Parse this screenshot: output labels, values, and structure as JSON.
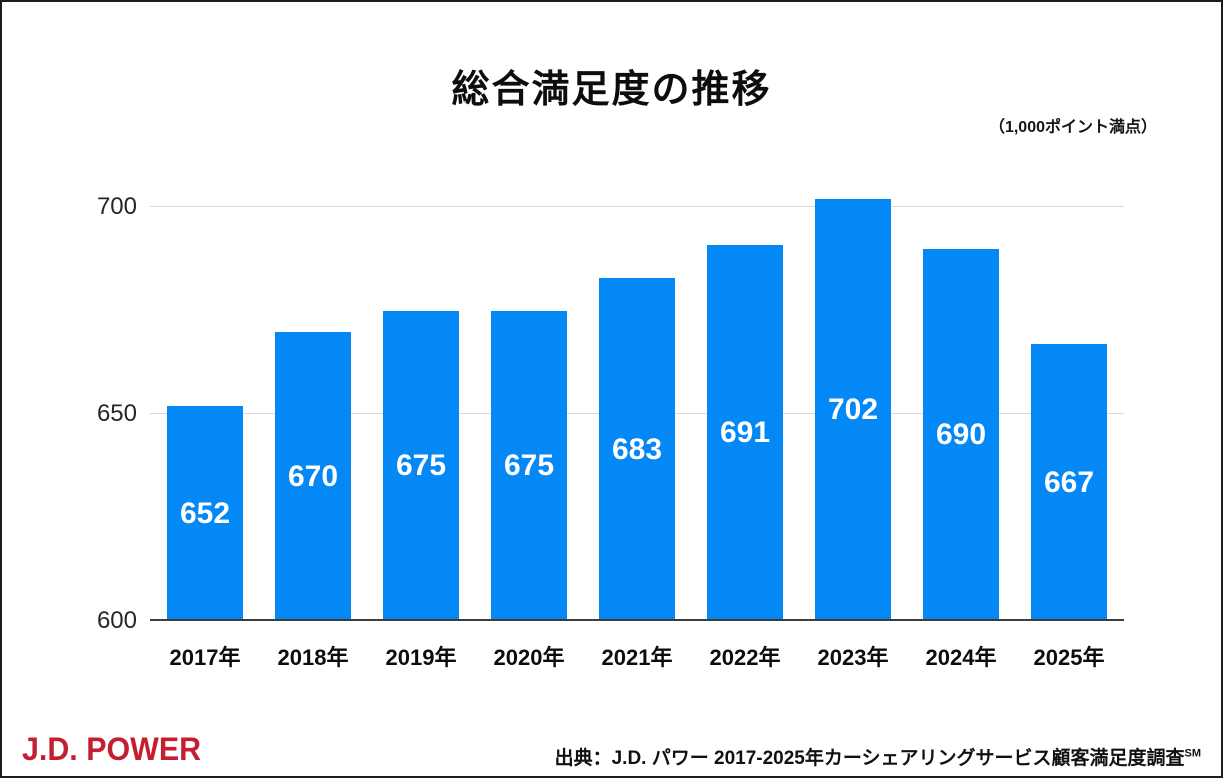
{
  "page": {
    "note": "（1,000ポイント満点）",
    "footer": {
      "logo": "J.D. POWER",
      "source_text": "出典：J.D. パワー 2017-2025年カーシェアリングサービス顧客満足度調査",
      "source_mark": "SM"
    }
  },
  "colors": {
    "bar": "#0488f6",
    "gridline": "#d9d9d9",
    "axis": "#3d3d3d",
    "logo_red": "#c41f30",
    "value_label": "#ffffff"
  },
  "chart_data": {
    "type": "bar",
    "title": "総合満足度の推移",
    "subtitle": "（1,000ポイント満点）",
    "categories": [
      "2017年",
      "2018年",
      "2019年",
      "2020年",
      "2021年",
      "2022年",
      "2023年",
      "2024年",
      "2025年"
    ],
    "values": [
      652,
      670,
      675,
      675,
      683,
      691,
      702,
      690,
      667
    ],
    "xlabel": "",
    "ylabel": "",
    "ylim": [
      600,
      711
    ],
    "yticks": [
      600,
      650,
      700
    ],
    "grid": "horizontal-only",
    "legend": "none",
    "value_labels_inside_bars": true
  }
}
